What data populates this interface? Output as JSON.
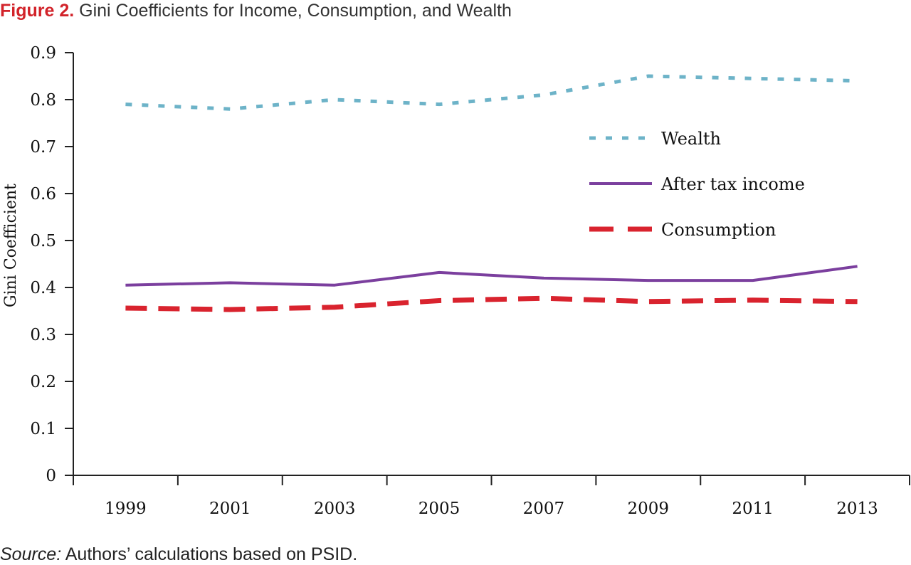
{
  "title": {
    "figure_label": "Figure 2.",
    "text": "Gini Coefficients for Income, Consumption, and Wealth"
  },
  "source": {
    "label": "Source:",
    "text": "Authors’ calculations based on PSID."
  },
  "colors": {
    "wealth": "#6db3c8",
    "income": "#7b3f9e",
    "consumption": "#d9232e",
    "figure_label": "#d2232a"
  },
  "chart_data": {
    "type": "line",
    "ylabel": "Gini Coefficient",
    "xlabel": "",
    "ylim": [
      0,
      0.9
    ],
    "yticks": [
      "0",
      "0.1",
      "0.2",
      "0.3",
      "0.4",
      "0.5",
      "0.6",
      "0.7",
      "0.8",
      "0.9"
    ],
    "xticks": [
      "1999",
      "2001",
      "2003",
      "2005",
      "2007",
      "2009",
      "2011",
      "2013"
    ],
    "x": [
      1999,
      2001,
      2003,
      2005,
      2007,
      2009,
      2011,
      2013
    ],
    "legend_position": "right",
    "grid": false,
    "series": [
      {
        "name": "Wealth",
        "style": "dotted",
        "x": [
          1999,
          2001,
          2003,
          2005,
          2007,
          2009,
          2011,
          2013
        ],
        "values": [
          0.79,
          0.78,
          0.8,
          0.79,
          0.81,
          0.85,
          0.845,
          0.84
        ]
      },
      {
        "name": "After tax income",
        "style": "solid",
        "x": [
          1999,
          2001,
          2003,
          2005,
          2007,
          2009,
          2011,
          2013
        ],
        "values": [
          0.405,
          0.41,
          0.405,
          0.432,
          0.42,
          0.415,
          0.415,
          0.445
        ]
      },
      {
        "name": "Consumption",
        "style": "dashed",
        "x": [
          1999,
          2001,
          2003,
          2005,
          2007,
          2009,
          2011,
          2013
        ],
        "values": [
          0.356,
          0.353,
          0.358,
          0.372,
          0.377,
          0.37,
          0.373,
          0.37
        ]
      }
    ]
  }
}
